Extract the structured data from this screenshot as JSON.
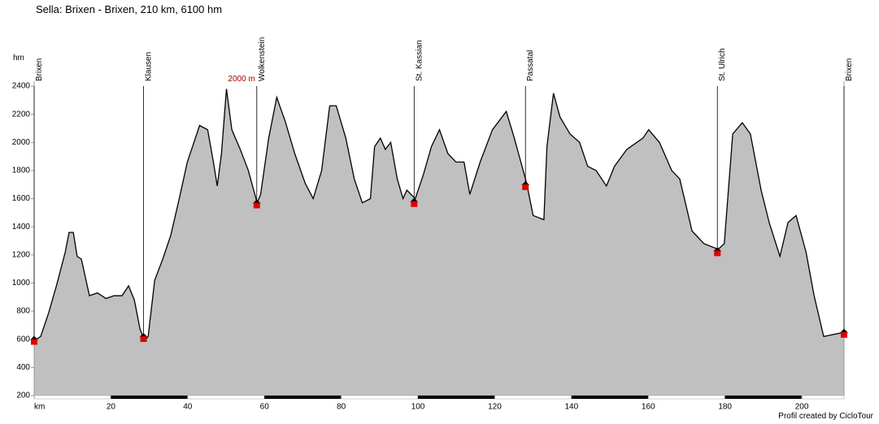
{
  "chart_data": {
    "type": "area",
    "title": "Sella: Brixen - Brixen, 210 km, 6100 hm",
    "y_label": "hm",
    "annotation": "2000 m",
    "footer": "Profil created by CicloTour",
    "color": "#c0c0c0",
    "line_color": "#000000",
    "x": [
      0,
      1.7,
      3.8,
      5.9,
      8.1,
      9.1,
      10.2,
      11.2,
      12.3,
      14.4,
      16.5,
      18.7,
      20.8,
      22.9,
      24.6,
      26.1,
      27.6,
      28.8,
      29.7,
      31.4,
      33.5,
      35.6,
      37.8,
      39.9,
      42.0,
      43.1,
      45.2,
      46.7,
      47.7,
      48.8,
      50.1,
      51.5,
      53.7,
      55.8,
      58.1,
      59.0,
      61.1,
      63.2,
      65.4,
      67.9,
      70.6,
      72.7,
      74.9,
      77.0,
      78.7,
      81.2,
      83.4,
      85.5,
      87.6,
      88.7,
      90.2,
      91.5,
      92.9,
      94.6,
      96.1,
      97.1,
      99.3,
      101.4,
      103.5,
      105.6,
      107.8,
      109.9,
      112.0,
      113.5,
      116.2,
      119.4,
      123.0,
      125.1,
      128.3,
      130.0,
      132.8,
      133.6,
      135.3,
      137.0,
      139.6,
      142.1,
      144.2,
      146.4,
      149.1,
      151.2,
      154.4,
      158.6,
      160.1,
      162.9,
      166.1,
      168.2,
      171.4,
      174.5,
      178.2,
      179.8,
      182.0,
      184.5,
      186.6,
      189.4,
      191.5,
      194.3,
      196.4,
      198.5,
      201.1,
      203.2,
      205.7,
      211
    ],
    "values": [
      590,
      620,
      790,
      990,
      1220,
      1360,
      1360,
      1190,
      1170,
      910,
      930,
      890,
      910,
      910,
      980,
      880,
      670,
      590,
      620,
      1020,
      1170,
      1340,
      1600,
      1860,
      2030,
      2120,
      2090,
      1860,
      1690,
      1920,
      2380,
      2090,
      1950,
      1800,
      1570,
      1630,
      2030,
      2320,
      2150,
      1920,
      1710,
      1600,
      1800,
      2260,
      2260,
      2030,
      1740,
      1570,
      1600,
      1970,
      2030,
      1950,
      2000,
      1740,
      1600,
      1660,
      1600,
      1770,
      1970,
      2090,
      1920,
      1860,
      1860,
      1630,
      1860,
      2090,
      2220,
      2030,
      1710,
      1480,
      1450,
      1970,
      2350,
      2180,
      2060,
      2000,
      1830,
      1800,
      1690,
      1830,
      1950,
      2030,
      2090,
      2000,
      1800,
      1740,
      1370,
      1280,
      1240,
      1280,
      2060,
      2140,
      2060,
      1660,
      1430,
      1190,
      1430,
      1480,
      1220,
      910,
      620,
      650
    ],
    "places": [
      {
        "name": "Brixen",
        "x": 0,
        "value": 590
      },
      {
        "name": "Klausen",
        "x": 28.5,
        "value": 610
      },
      {
        "name": "Wolkenstein",
        "x": 58,
        "value": 1560
      },
      {
        "name": "St. Kassian",
        "x": 99,
        "value": 1570
      },
      {
        "name": "Passatal",
        "x": 128,
        "value": 1690
      },
      {
        "name": "St. Ulrich",
        "x": 178,
        "value": 1220
      },
      {
        "name": "Brixen",
        "x": 211,
        "value": 640
      }
    ],
    "xlim": [
      0,
      211
    ],
    "xticks": [
      {
        "value": 0,
        "label": "km"
      },
      20,
      40,
      60,
      80,
      100,
      120,
      140,
      160,
      180,
      200
    ],
    "ylim": [
      200,
      2400
    ],
    "yticks": [
      200,
      400,
      600,
      800,
      1000,
      1200,
      1400,
      1600,
      1800,
      2000,
      2200,
      2400
    ]
  }
}
